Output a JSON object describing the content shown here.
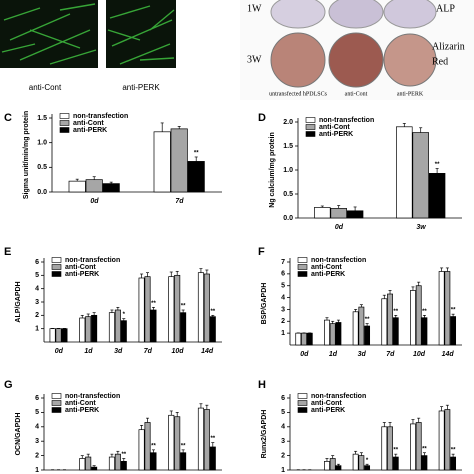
{
  "images": {
    "labels": [
      "anti-Cont",
      "anti-PERK"
    ]
  },
  "wells": {
    "rows": [
      "1W",
      "3W"
    ],
    "stains": [
      "ALP",
      "Alizarin",
      "Red"
    ],
    "columns": [
      "untransfected hPDLSCs",
      "anti-Cont",
      "anti-PERK"
    ]
  },
  "chart_data": [
    {
      "type": "bar",
      "panel": "C",
      "y_label": "Sigma unit/min/mg protein",
      "categories": [
        "0d",
        "7d"
      ],
      "series": [
        {
          "name": "non-transfection",
          "color": "#ffffff",
          "values": [
            0.22,
            1.22
          ],
          "errors": [
            0.04,
            0.18
          ]
        },
        {
          "name": "anti-Cont",
          "color": "#a6a6a6",
          "values": [
            0.25,
            1.28
          ],
          "errors": [
            0.06,
            0.05
          ]
        },
        {
          "name": "anti-PERK",
          "color": "#000000",
          "values": [
            0.17,
            0.62
          ],
          "errors": [
            0.03,
            0.09
          ],
          "significance": [
            null,
            "**"
          ]
        }
      ],
      "ylim": [
        0,
        1.5
      ],
      "yticks": [
        {
          "value": 0,
          "label": "0.0"
        },
        {
          "value": 0.5,
          "label": "0.5"
        },
        {
          "value": 1,
          "label": "1.0"
        },
        {
          "value": 1.5,
          "label": "1.5"
        }
      ],
      "legend": "upper left"
    },
    {
      "type": "bar",
      "panel": "D",
      "y_label": "Ng calcium/mg protein",
      "categories": [
        "0d",
        "3w"
      ],
      "series": [
        {
          "name": "non-transfection",
          "color": "#ffffff",
          "values": [
            0.22,
            1.9
          ],
          "errors": [
            0.03,
            0.07
          ]
        },
        {
          "name": "anti-Cont",
          "color": "#a6a6a6",
          "values": [
            0.2,
            1.78
          ],
          "errors": [
            0.06,
            0.1
          ]
        },
        {
          "name": "anti-PERK",
          "color": "#000000",
          "values": [
            0.15,
            0.93
          ],
          "errors": [
            0.08,
            0.1
          ],
          "significance": [
            null,
            "**"
          ]
        }
      ],
      "ylim": [
        0,
        2
      ],
      "yticks": [
        {
          "value": 0,
          "label": "0.0"
        },
        {
          "value": 0.5,
          "label": "0.5"
        },
        {
          "value": 1,
          "label": "1.0"
        },
        {
          "value": 1.5,
          "label": "1.5"
        },
        {
          "value": 2,
          "label": "2.0"
        }
      ],
      "legend": "upper left"
    },
    {
      "type": "bar",
      "panel": "E",
      "y_label": "ALP/GAPDH",
      "categories": [
        "0d",
        "1d",
        "3d",
        "7d",
        "10d",
        "14d"
      ],
      "series": [
        {
          "name": "non-transfection",
          "color": "#ffffff",
          "values": [
            1,
            1.8,
            2.2,
            4.8,
            4.9,
            5.2
          ],
          "errors": [
            0.02,
            0.2,
            0.2,
            0.3,
            0.35,
            0.3
          ]
        },
        {
          "name": "anti-Cont",
          "color": "#a6a6a6",
          "values": [
            1,
            1.9,
            2.4,
            4.9,
            5.0,
            5.1
          ],
          "errors": [
            0.02,
            0.2,
            0.2,
            0.3,
            0.3,
            0.3
          ]
        },
        {
          "name": "anti-PERK",
          "color": "#000000",
          "values": [
            1,
            2.0,
            1.6,
            2.4,
            2.2,
            1.9
          ],
          "errors": [
            0.02,
            0.2,
            0.15,
            0.2,
            0.2,
            0.1
          ],
          "significance": [
            null,
            null,
            "*",
            "**",
            "**",
            "**"
          ]
        }
      ],
      "ylim": [
        0,
        6
      ],
      "yticks": [
        1,
        2,
        3,
        4,
        5,
        6
      ],
      "legend": "upper left"
    },
    {
      "type": "bar",
      "panel": "F",
      "y_label": "BSP/GAPDH",
      "categories": [
        "0d",
        "1d",
        "3d",
        "7d",
        "10d",
        "14d"
      ],
      "series": [
        {
          "name": "non-transfection",
          "color": "#ffffff",
          "values": [
            1,
            2.1,
            2.8,
            3.9,
            4.6,
            6.2
          ],
          "errors": [
            0.02,
            0.2,
            0.2,
            0.3,
            0.3,
            0.3
          ]
        },
        {
          "name": "anti-Cont",
          "color": "#a6a6a6",
          "values": [
            1,
            1.8,
            3.2,
            4.3,
            5.0,
            6.2
          ],
          "errors": [
            0.02,
            0.2,
            0.2,
            0.3,
            0.3,
            0.3
          ]
        },
        {
          "name": "anti-PERK",
          "color": "#000000",
          "values": [
            1,
            1.9,
            1.6,
            2.3,
            2.3,
            2.4
          ],
          "errors": [
            0.02,
            0.2,
            0.2,
            0.2,
            0.2,
            0.2
          ],
          "significance": [
            null,
            null,
            "**",
            "**",
            "**",
            "**"
          ]
        }
      ],
      "ylim": [
        0,
        7
      ],
      "yticks": [
        1,
        2,
        3,
        4,
        5,
        6,
        7
      ],
      "legend": "upper left"
    },
    {
      "type": "bar",
      "panel": "G",
      "y_label": "OCN/GAPDH",
      "categories": [
        null,
        null,
        null,
        null,
        null,
        null
      ],
      "series": [
        {
          "name": "non-transfection",
          "color": "#ffffff",
          "values": [
            1,
            1.8,
            1.9,
            3.8,
            4.8,
            5.3
          ],
          "errors": [
            0.02,
            0.2,
            0.2,
            0.3,
            0.3,
            0.3
          ]
        },
        {
          "name": "anti-Cont",
          "color": "#a6a6a6",
          "values": [
            1,
            1.9,
            2.1,
            4.3,
            4.7,
            5.2
          ],
          "errors": [
            0.02,
            0.2,
            0.2,
            0.3,
            0.3,
            0.3
          ]
        },
        {
          "name": "anti-PERK",
          "color": "#000000",
          "values": [
            1,
            1.2,
            1.6,
            2.2,
            2.2,
            2.6
          ],
          "errors": [
            0.02,
            0.1,
            0.2,
            0.2,
            0.2,
            0.3
          ],
          "significance": [
            null,
            null,
            "**",
            "**",
            "**",
            "**"
          ]
        }
      ],
      "ylim": [
        1,
        6
      ],
      "yticks": [
        1,
        2,
        3,
        4,
        5,
        6
      ],
      "legend": "upper left"
    },
    {
      "type": "bar",
      "panel": "H",
      "y_label": "Runx2/GAPDH",
      "categories": [
        null,
        null,
        null,
        null,
        null,
        null
      ],
      "series": [
        {
          "name": "non-transfection",
          "color": "#ffffff",
          "values": [
            1,
            1.6,
            2.1,
            4.0,
            4.2,
            5.1
          ],
          "errors": [
            0.02,
            0.2,
            0.2,
            0.3,
            0.3,
            0.3
          ]
        },
        {
          "name": "anti-Cont",
          "color": "#a6a6a6",
          "values": [
            1,
            1.8,
            2.0,
            4.0,
            4.3,
            5.2
          ],
          "errors": [
            0.02,
            0.2,
            0.2,
            0.3,
            0.3,
            0.3
          ]
        },
        {
          "name": "anti-PERK",
          "color": "#000000",
          "values": [
            1,
            1.3,
            1.3,
            1.9,
            2.0,
            1.9
          ],
          "errors": [
            0.02,
            0.1,
            0.1,
            0.2,
            0.2,
            0.2
          ],
          "significance": [
            null,
            null,
            "*",
            "**",
            "**",
            "**"
          ]
        }
      ],
      "ylim": [
        1,
        6
      ],
      "yticks": [
        1,
        2,
        3,
        4,
        5,
        6
      ],
      "legend": "upper left"
    }
  ]
}
